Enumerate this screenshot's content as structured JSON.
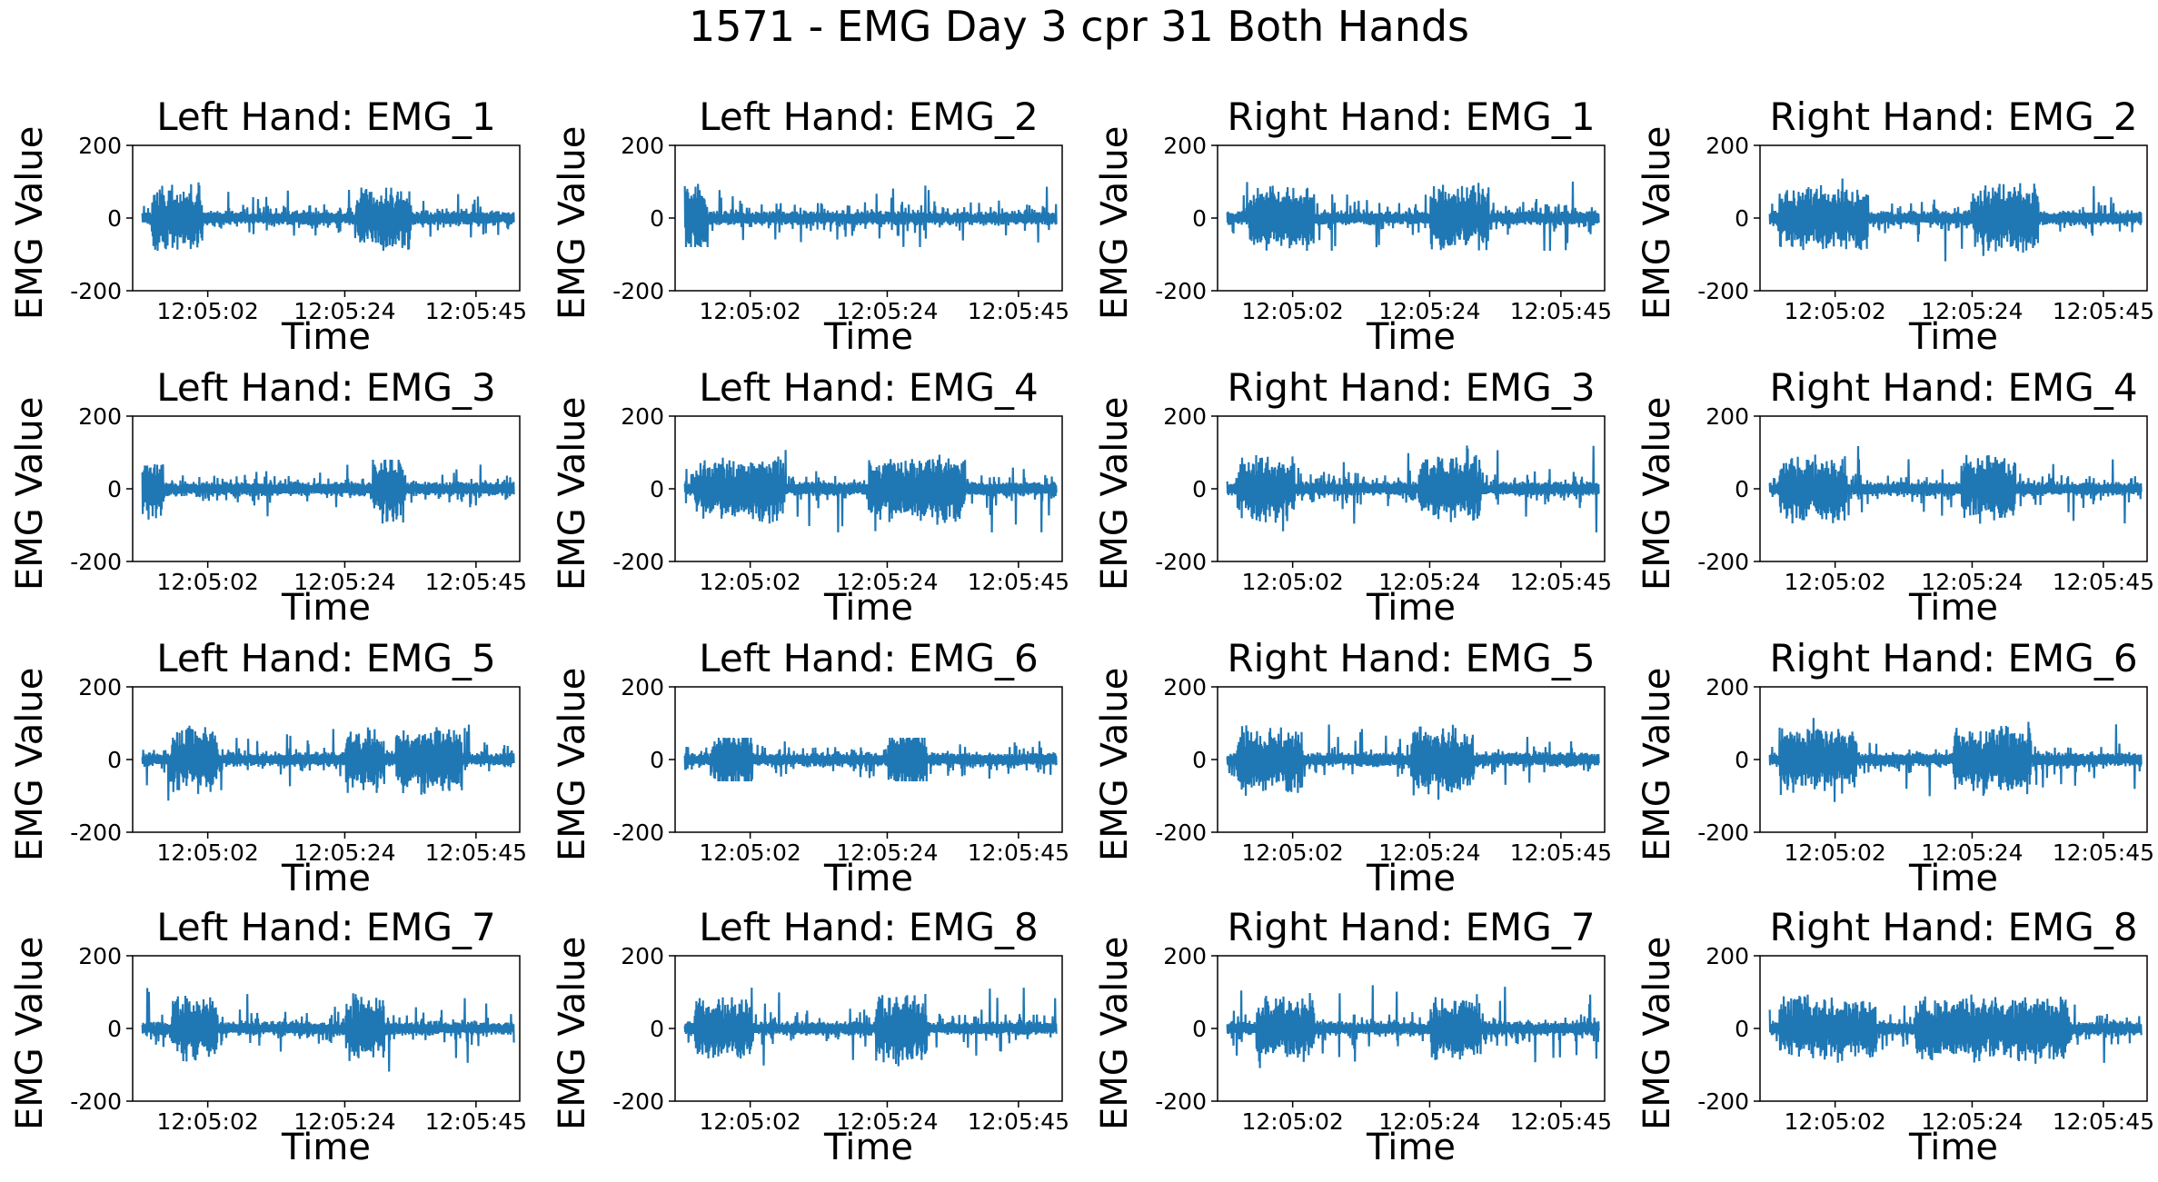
{
  "title": "1571 - EMG Day 3 cpr 31 Both Hands",
  "chart_data": {
    "type": "line",
    "title": "1571 - EMG Day 3 cpr 31 Both Hands",
    "layout": "4x4 grid",
    "series_color": "#1f77b4",
    "ylim": [
      -200,
      200
    ],
    "yticks": [
      -200,
      0,
      200
    ],
    "x_range": [
      "12:04:50",
      "12:05:52"
    ],
    "xticks": [
      "12:05:02",
      "12:05:24",
      "12:05:45"
    ],
    "panels": [
      {
        "title": "Left Hand:  EMG_1",
        "xlabel": "Time",
        "ylabel": "EMG Value",
        "approx_amplitude": [
          100,
          90
        ],
        "bursts": [
          [
            0.05,
            0.18
          ],
          [
            0.58,
            0.72
          ]
        ]
      },
      {
        "title": "Left Hand:  EMG_2",
        "xlabel": "Time",
        "ylabel": "EMG Value",
        "approx_amplitude": [
          110,
          80
        ],
        "bursts": [
          [
            0.02,
            0.08
          ]
        ]
      },
      {
        "title": "Right Hand:  EMG_1",
        "xlabel": "Time",
        "ylabel": "EMG Value",
        "approx_amplitude": [
          120,
          90
        ],
        "bursts": [
          [
            0.08,
            0.25
          ],
          [
            0.55,
            0.7
          ]
        ]
      },
      {
        "title": "Right Hand:  EMG_2",
        "xlabel": "Time",
        "ylabel": "EMG Value",
        "approx_amplitude": [
          130,
          120
        ],
        "bursts": [
          [
            0.05,
            0.28
          ],
          [
            0.55,
            0.72
          ]
        ]
      },
      {
        "title": "Left Hand:  EMG_3",
        "xlabel": "Time",
        "ylabel": "EMG Value",
        "approx_amplitude": [
          80,
          100
        ],
        "bursts": [
          [
            0.02,
            0.08
          ],
          [
            0.62,
            0.7
          ]
        ]
      },
      {
        "title": "Left Hand:  EMG_4",
        "xlabel": "Time",
        "ylabel": "EMG Value",
        "approx_amplitude": [
          130,
          120
        ],
        "bursts": [
          [
            0.05,
            0.28
          ],
          [
            0.5,
            0.75
          ]
        ]
      },
      {
        "title": "Right Hand:  EMG_3",
        "xlabel": "Time",
        "ylabel": "EMG Value",
        "approx_amplitude": [
          130,
          120
        ],
        "bursts": [
          [
            0.05,
            0.2
          ],
          [
            0.52,
            0.68
          ]
        ]
      },
      {
        "title": "Right Hand:  EMG_4",
        "xlabel": "Time",
        "ylabel": "EMG Value",
        "approx_amplitude": [
          130,
          120
        ],
        "bursts": [
          [
            0.05,
            0.22
          ],
          [
            0.52,
            0.66
          ]
        ]
      },
      {
        "title": "Left Hand:  EMG_5",
        "xlabel": "Time",
        "ylabel": "EMG Value",
        "approx_amplitude": [
          120,
          120
        ],
        "bursts": [
          [
            0.1,
            0.22
          ],
          [
            0.55,
            0.65
          ],
          [
            0.68,
            0.85
          ]
        ]
      },
      {
        "title": "Left Hand:  EMG_6",
        "xlabel": "Time",
        "ylabel": "EMG Value",
        "approx_amplitude": [
          60,
          60
        ],
        "bursts": [
          [
            0.1,
            0.2
          ],
          [
            0.55,
            0.65
          ]
        ]
      },
      {
        "title": "Right Hand:  EMG_5",
        "xlabel": "Time",
        "ylabel": "EMG Value",
        "approx_amplitude": [
          110,
          120
        ],
        "bursts": [
          [
            0.05,
            0.22
          ],
          [
            0.5,
            0.66
          ]
        ]
      },
      {
        "title": "Right Hand:  EMG_6",
        "xlabel": "Time",
        "ylabel": "EMG Value",
        "approx_amplitude": [
          130,
          120
        ],
        "bursts": [
          [
            0.05,
            0.25
          ],
          [
            0.5,
            0.7
          ]
        ]
      },
      {
        "title": "Left Hand:  EMG_7",
        "xlabel": "Time",
        "ylabel": "EMG Value",
        "approx_amplitude": [
          130,
          130
        ],
        "bursts": [
          [
            0.1,
            0.22
          ],
          [
            0.55,
            0.65
          ]
        ]
      },
      {
        "title": "Left Hand:  EMG_8",
        "xlabel": "Time",
        "ylabel": "EMG Value",
        "approx_amplitude": [
          130,
          130
        ],
        "bursts": [
          [
            0.05,
            0.2
          ],
          [
            0.52,
            0.65
          ]
        ]
      },
      {
        "title": "Right Hand:  EMG_7",
        "xlabel": "Time",
        "ylabel": "EMG Value",
        "approx_amplitude": [
          130,
          120
        ],
        "bursts": [
          [
            0.1,
            0.25
          ],
          [
            0.55,
            0.68
          ]
        ]
      },
      {
        "title": "Right Hand:  EMG_8",
        "xlabel": "Time",
        "ylabel": "EMG Value",
        "approx_amplitude": [
          100,
          100
        ],
        "bursts": [
          [
            0.05,
            0.3
          ],
          [
            0.4,
            0.8
          ]
        ]
      }
    ]
  }
}
